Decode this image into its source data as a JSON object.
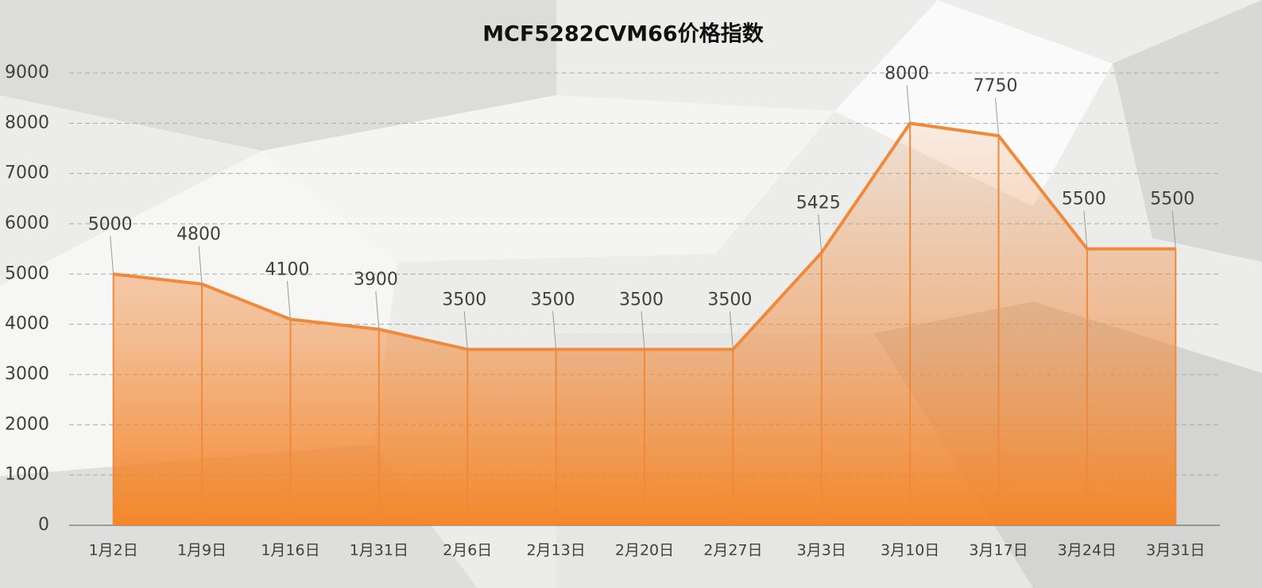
{
  "chart_data": {
    "type": "area",
    "title": "MCF5282CVM66价格指数",
    "categories": [
      "1月2日",
      "1月9日",
      "1月16日",
      "1月31日",
      "2月6日",
      "2月13日",
      "2月20日",
      "2月27日",
      "3月3日",
      "3月10日",
      "3月17日",
      "3月24日",
      "3月31日"
    ],
    "values": [
      5000,
      4800,
      4100,
      3900,
      3500,
      3500,
      3500,
      3500,
      5425,
      8000,
      7750,
      5500,
      5500
    ],
    "color": "#f0893a",
    "ylim": [
      0,
      9000
    ],
    "yticks": [
      0,
      1000,
      2000,
      3000,
      4000,
      5000,
      6000,
      7000,
      8000,
      9000
    ],
    "grid": true
  }
}
